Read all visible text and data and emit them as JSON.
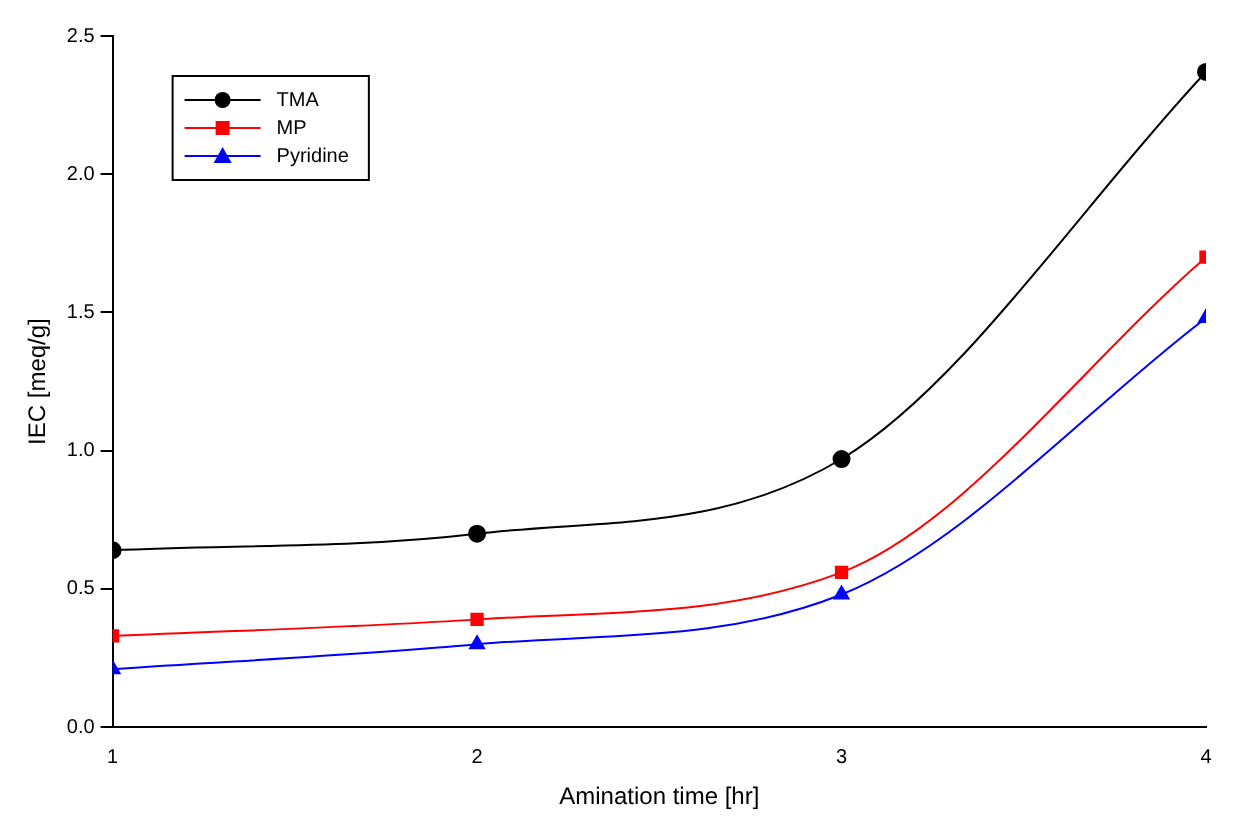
{
  "chart_data": {
    "type": "line",
    "xlabel": "Amination time [hr]",
    "ylabel": "IEC [meq/g]",
    "x": [
      1,
      2,
      3,
      4
    ],
    "xlim": [
      1,
      4
    ],
    "xticks": [
      1,
      2,
      3,
      4
    ],
    "ylim": [
      0,
      2.5
    ],
    "yticks": [
      {
        "value": 0,
        "label": "0.0"
      },
      {
        "value": 0.5,
        "label": "0.5"
      },
      {
        "value": 1,
        "label": "1.0"
      },
      {
        "value": 1.5,
        "label": "1.5"
      },
      {
        "value": 2,
        "label": "2.0"
      },
      {
        "value": 2.5,
        "label": "2.5"
      }
    ],
    "grid": false,
    "legend": "top left",
    "series": [
      {
        "name": "TMA",
        "color": "#000000",
        "marker": "circle",
        "values": [
          0.64,
          0.7,
          0.97,
          2.37
        ]
      },
      {
        "name": "MP",
        "color": "#ff0000",
        "marker": "square",
        "values": [
          0.33,
          0.39,
          0.56,
          1.7
        ]
      },
      {
        "name": "Pyridine",
        "color": "#0000ff",
        "marker": "triangle",
        "values": [
          0.21,
          0.3,
          0.48,
          1.48
        ]
      }
    ]
  }
}
